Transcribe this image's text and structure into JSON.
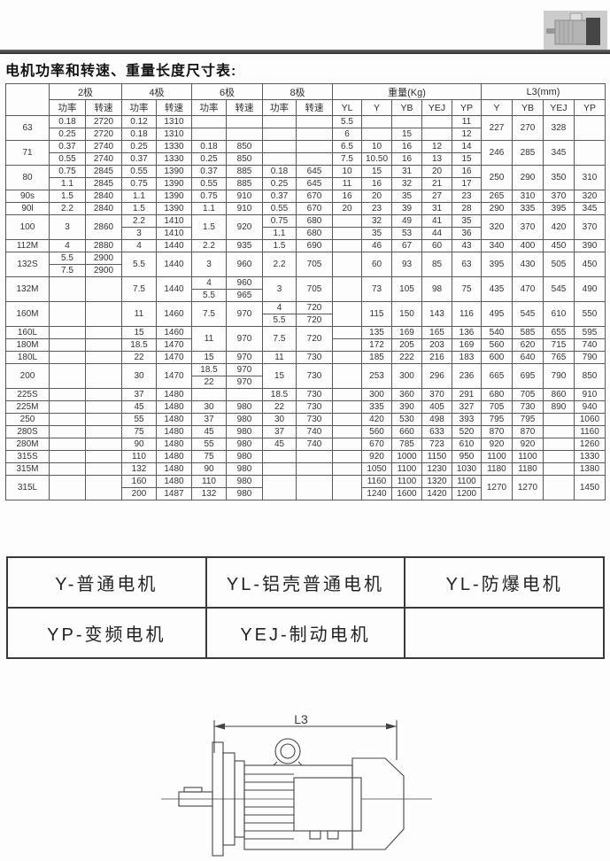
{
  "page": {
    "title": "电机功率和转速、重量长度尺寸表:"
  },
  "spec_table": {
    "pole_groups": [
      "2极",
      "4极",
      "6极",
      "8极"
    ],
    "power_label": "功率",
    "speed_label": "转速",
    "weight_header": "重量(Kg)",
    "l3_header": "L3(mm)",
    "weight_cols": [
      "YL",
      "Y",
      "YB",
      "YEJ",
      "YP"
    ],
    "l3_cols": [
      "Y",
      "YB",
      "YEJ",
      "YP"
    ],
    "rows": [
      {
        "cells": [
          {
            "t": "63",
            "rs": 2
          },
          "0.18",
          "2720",
          "0.12",
          "1310",
          "",
          "",
          "",
          "",
          "5.5",
          "",
          "",
          "",
          "11",
          {
            "t": "227",
            "rs": 2
          },
          {
            "t": "270",
            "rs": 2
          },
          {
            "t": "328",
            "rs": 2
          },
          {
            "t": "",
            "rs": 2
          }
        ]
      },
      {
        "cells": [
          "0.25",
          "2720",
          "0.18",
          "1310",
          "",
          "",
          "",
          "",
          "6",
          "",
          "15",
          "",
          "12"
        ]
      },
      {
        "cells": [
          {
            "t": "71",
            "rs": 2
          },
          "0.37",
          "2740",
          "0.25",
          "1330",
          "0.18",
          "850",
          "",
          "",
          "6.5",
          "10",
          "16",
          "12",
          "14",
          {
            "t": "246",
            "rs": 2
          },
          {
            "t": "285",
            "rs": 2
          },
          {
            "t": "345",
            "rs": 2
          },
          {
            "t": "",
            "rs": 2
          }
        ]
      },
      {
        "cells": [
          "0.55",
          "2740",
          "0.37",
          "1330",
          "0.25",
          "850",
          "",
          "",
          "7.5",
          "10.50",
          "16",
          "13",
          "15"
        ]
      },
      {
        "cells": [
          {
            "t": "80",
            "rs": 2
          },
          "0.75",
          "2845",
          "0.55",
          "1390",
          "0.37",
          "885",
          "0.18",
          "645",
          "10",
          "15",
          "31",
          "20",
          "16",
          {
            "t": "250",
            "rs": 2
          },
          {
            "t": "290",
            "rs": 2
          },
          {
            "t": "350",
            "rs": 2
          },
          {
            "t": "310",
            "rs": 2
          }
        ]
      },
      {
        "cells": [
          "1.1",
          "2845",
          "0.75",
          "1390",
          "0.55",
          "885",
          "0.25",
          "645",
          "11",
          "16",
          "32",
          "21",
          "17"
        ]
      },
      {
        "cells": [
          "90s",
          "1.5",
          "2840",
          "1.1",
          "1390",
          "0.75",
          "910",
          "0.37",
          "670",
          "16",
          "20",
          "35",
          "27",
          "23",
          "265",
          "310",
          "370",
          "320"
        ]
      },
      {
        "cells": [
          "90l",
          "2.2",
          "2840",
          "1.5",
          "1390",
          "1.1",
          "910",
          "0.55",
          "670",
          "20",
          "23",
          "39",
          "31",
          "28",
          "290",
          "335",
          "395",
          "345"
        ]
      },
      {
        "cells": [
          {
            "t": "100",
            "rs": 2
          },
          {
            "t": "3",
            "rs": 2
          },
          {
            "t": "2860",
            "rs": 2
          },
          "2.2",
          "1410",
          {
            "t": "1.5",
            "rs": 2
          },
          {
            "t": "920",
            "rs": 2
          },
          "0.75",
          "680",
          "",
          "32",
          "49",
          "41",
          "35",
          {
            "t": "320",
            "rs": 2
          },
          {
            "t": "370",
            "rs": 2
          },
          {
            "t": "420",
            "rs": 2
          },
          {
            "t": "370",
            "rs": 2
          }
        ]
      },
      {
        "cells": [
          "3",
          "1410",
          "1.1",
          "680",
          "",
          "35",
          "53",
          "44",
          "36"
        ]
      },
      {
        "cells": [
          "112M",
          "4",
          "2880",
          "4",
          "1440",
          "2.2",
          "935",
          "1.5",
          "690",
          "",
          "46",
          "67",
          "60",
          "43",
          "340",
          "400",
          "450",
          "390"
        ]
      },
      {
        "cells": [
          {
            "t": "132S",
            "rs": 2
          },
          "5.5",
          "2900",
          {
            "t": "5.5",
            "rs": 2
          },
          {
            "t": "1440",
            "rs": 2
          },
          {
            "t": "3",
            "rs": 2
          },
          {
            "t": "960",
            "rs": 2
          },
          {
            "t": "2.2",
            "rs": 2
          },
          {
            "t": "705",
            "rs": 2
          },
          {
            "t": "",
            "rs": 2
          },
          {
            "t": "60",
            "rs": 2
          },
          {
            "t": "93",
            "rs": 2
          },
          {
            "t": "85",
            "rs": 2
          },
          {
            "t": "63",
            "rs": 2
          },
          {
            "t": "395",
            "rs": 2
          },
          {
            "t": "430",
            "rs": 2
          },
          {
            "t": "505",
            "rs": 2
          },
          {
            "t": "450",
            "rs": 2
          }
        ]
      },
      {
        "cells": [
          "7.5",
          "2900"
        ]
      },
      {
        "cells": [
          {
            "t": "132M",
            "rs": 2
          },
          {
            "t": "",
            "rs": 2
          },
          {
            "t": "",
            "rs": 2
          },
          {
            "t": "7.5",
            "rs": 2
          },
          {
            "t": "1440",
            "rs": 2
          },
          "4",
          "960",
          {
            "t": "3",
            "rs": 2
          },
          {
            "t": "705",
            "rs": 2
          },
          {
            "t": "",
            "rs": 2
          },
          {
            "t": "73",
            "rs": 2
          },
          {
            "t": "105",
            "rs": 2
          },
          {
            "t": "98",
            "rs": 2
          },
          {
            "t": "75",
            "rs": 2
          },
          {
            "t": "435",
            "rs": 2
          },
          {
            "t": "470",
            "rs": 2
          },
          {
            "t": "545",
            "rs": 2
          },
          {
            "t": "490",
            "rs": 2
          }
        ]
      },
      {
        "cells": [
          "5.5",
          "965"
        ]
      },
      {
        "cells": [
          {
            "t": "160M",
            "rs": 2
          },
          {
            "t": "",
            "rs": 2
          },
          {
            "t": "",
            "rs": 2
          },
          {
            "t": "11",
            "rs": 2
          },
          {
            "t": "1460",
            "rs": 2
          },
          {
            "t": "7.5",
            "rs": 2
          },
          {
            "t": "970",
            "rs": 2
          },
          "4",
          "720",
          {
            "t": "",
            "rs": 2
          },
          {
            "t": "115",
            "rs": 2
          },
          {
            "t": "150",
            "rs": 2
          },
          {
            "t": "143",
            "rs": 2
          },
          {
            "t": "116",
            "rs": 2
          },
          {
            "t": "495",
            "rs": 2
          },
          {
            "t": "545",
            "rs": 2
          },
          {
            "t": "610",
            "rs": 2
          },
          {
            "t": "550",
            "rs": 2
          }
        ]
      },
      {
        "cells": [
          "5.5",
          "720"
        ]
      },
      {
        "cells": [
          "160L",
          "",
          "",
          "15",
          "1460",
          {
            "t": "11",
            "rs": 2
          },
          {
            "t": "970",
            "rs": 2
          },
          {
            "t": "7.5",
            "rs": 2
          },
          {
            "t": "720",
            "rs": 2
          },
          "",
          "135",
          "169",
          "165",
          "136",
          "540",
          "585",
          "655",
          "595"
        ]
      },
      {
        "cells": [
          "180M",
          "",
          "",
          "18.5",
          "1470",
          "",
          "172",
          "205",
          "203",
          "169",
          "560",
          "620",
          "715",
          "740"
        ]
      },
      {
        "cells": [
          "180L",
          "",
          "",
          "22",
          "1470",
          "15",
          "970",
          "11",
          "730",
          "",
          "185",
          "222",
          "216",
          "183",
          "600",
          "640",
          "765",
          "790"
        ]
      },
      {
        "cells": [
          {
            "t": "200",
            "rs": 2
          },
          {
            "t": "",
            "rs": 2
          },
          {
            "t": "",
            "rs": 2
          },
          {
            "t": "30",
            "rs": 2
          },
          {
            "t": "1470",
            "rs": 2
          },
          "18.5",
          "970",
          {
            "t": "15",
            "rs": 2
          },
          {
            "t": "730",
            "rs": 2
          },
          {
            "t": "",
            "rs": 2
          },
          {
            "t": "253",
            "rs": 2
          },
          {
            "t": "300",
            "rs": 2
          },
          {
            "t": "296",
            "rs": 2
          },
          {
            "t": "236",
            "rs": 2
          },
          {
            "t": "665",
            "rs": 2
          },
          {
            "t": "695",
            "rs": 2
          },
          {
            "t": "790",
            "rs": 2
          },
          {
            "t": "850",
            "rs": 2
          }
        ]
      },
      {
        "cells": [
          "22",
          "970"
        ]
      },
      {
        "cells": [
          "225S",
          "",
          "",
          "37",
          "1480",
          "",
          "",
          "18.5",
          "730",
          "",
          "300",
          "360",
          "370",
          "291",
          "680",
          "705",
          "860",
          "910"
        ]
      },
      {
        "cells": [
          "225M",
          "",
          "",
          "45",
          "1480",
          "30",
          "980",
          "22",
          "730",
          "",
          "335",
          "390",
          "405",
          "327",
          "705",
          "730",
          "890",
          "940"
        ]
      },
      {
        "cells": [
          "250",
          "",
          "",
          "55",
          "1480",
          "37",
          "980",
          "30",
          "730",
          "",
          "420",
          "530",
          "498",
          "393",
          "795",
          "795",
          "",
          "1060"
        ]
      },
      {
        "cells": [
          "280S",
          "",
          "",
          "75",
          "1480",
          "45",
          "980",
          "37",
          "740",
          "",
          "560",
          "660",
          "633",
          "520",
          "870",
          "870",
          "",
          "1160"
        ]
      },
      {
        "cells": [
          "280M",
          "",
          "",
          "90",
          "1480",
          "55",
          "980",
          "45",
          "740",
          "",
          "670",
          "785",
          "723",
          "610",
          "920",
          "920",
          "",
          "1260"
        ]
      },
      {
        "cells": [
          "315S",
          "",
          "",
          "110",
          "1480",
          "75",
          "980",
          "",
          "",
          "",
          "920",
          "1000",
          "1150",
          "950",
          "1100",
          "1100",
          "",
          "1330"
        ]
      },
      {
        "cells": [
          "315M",
          "",
          "",
          "132",
          "1480",
          "90",
          "980",
          "",
          "",
          "",
          "1050",
          "1100",
          "1230",
          "1030",
          "1180",
          "1180",
          "",
          "1380"
        ]
      },
      {
        "cells": [
          {
            "t": "315L",
            "rs": 2
          },
          {
            "t": "",
            "rs": 2
          },
          {
            "t": "",
            "rs": 2
          },
          "160",
          "1480",
          "110",
          "980",
          {
            "t": "",
            "rs": 2
          },
          {
            "t": "",
            "rs": 2
          },
          {
            "t": "",
            "rs": 2
          },
          "1160",
          "1100",
          "1320",
          "1100",
          {
            "t": "1270",
            "rs": 2
          },
          {
            "t": "1270",
            "rs": 2
          },
          {
            "t": "",
            "rs": 2
          },
          {
            "t": "1450",
            "rs": 2
          }
        ]
      },
      {
        "cells": [
          "200",
          "1487",
          "132",
          "980",
          "1240",
          "1600",
          "1420",
          "1200"
        ]
      }
    ]
  },
  "legend_table": {
    "rows": [
      [
        "Y-普通电机",
        "YL-铝壳普通电机",
        "YL-防爆电机"
      ],
      [
        "YP-变频电机",
        "YEJ-制动电机",
        ""
      ]
    ]
  },
  "drawing": {
    "dim_label": "L3"
  }
}
